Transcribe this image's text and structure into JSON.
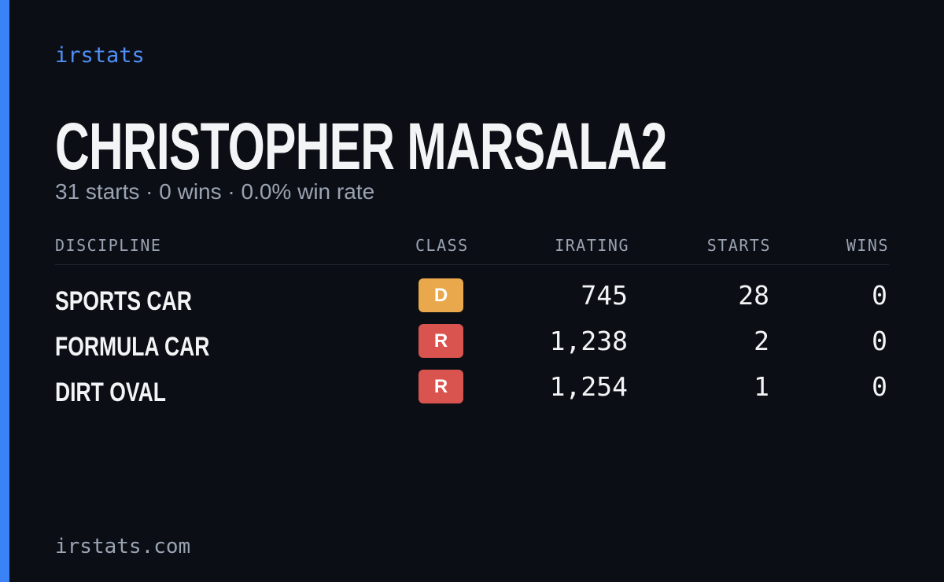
{
  "brand": "irstats",
  "header": {
    "name": "CHRISTOPHER MARSALA2",
    "summary": "31 starts · 0 wins · 0.0% win rate"
  },
  "table": {
    "columns": [
      "DISCIPLINE",
      "CLASS",
      "IRATING",
      "STARTS",
      "WINS"
    ],
    "rows": [
      {
        "discipline": "SPORTS CAR",
        "class": "D",
        "class_color": "#e9a84b",
        "irating": "745",
        "starts": "28",
        "wins": "0"
      },
      {
        "discipline": "FORMULA CAR",
        "class": "R",
        "class_color": "#d9534f",
        "irating": "1,238",
        "starts": "2",
        "wins": "0"
      },
      {
        "discipline": "DIRT OVAL",
        "class": "R",
        "class_color": "#d9534f",
        "irating": "1,254",
        "starts": "1",
        "wins": "0"
      }
    ]
  },
  "footer": "irstats.com"
}
